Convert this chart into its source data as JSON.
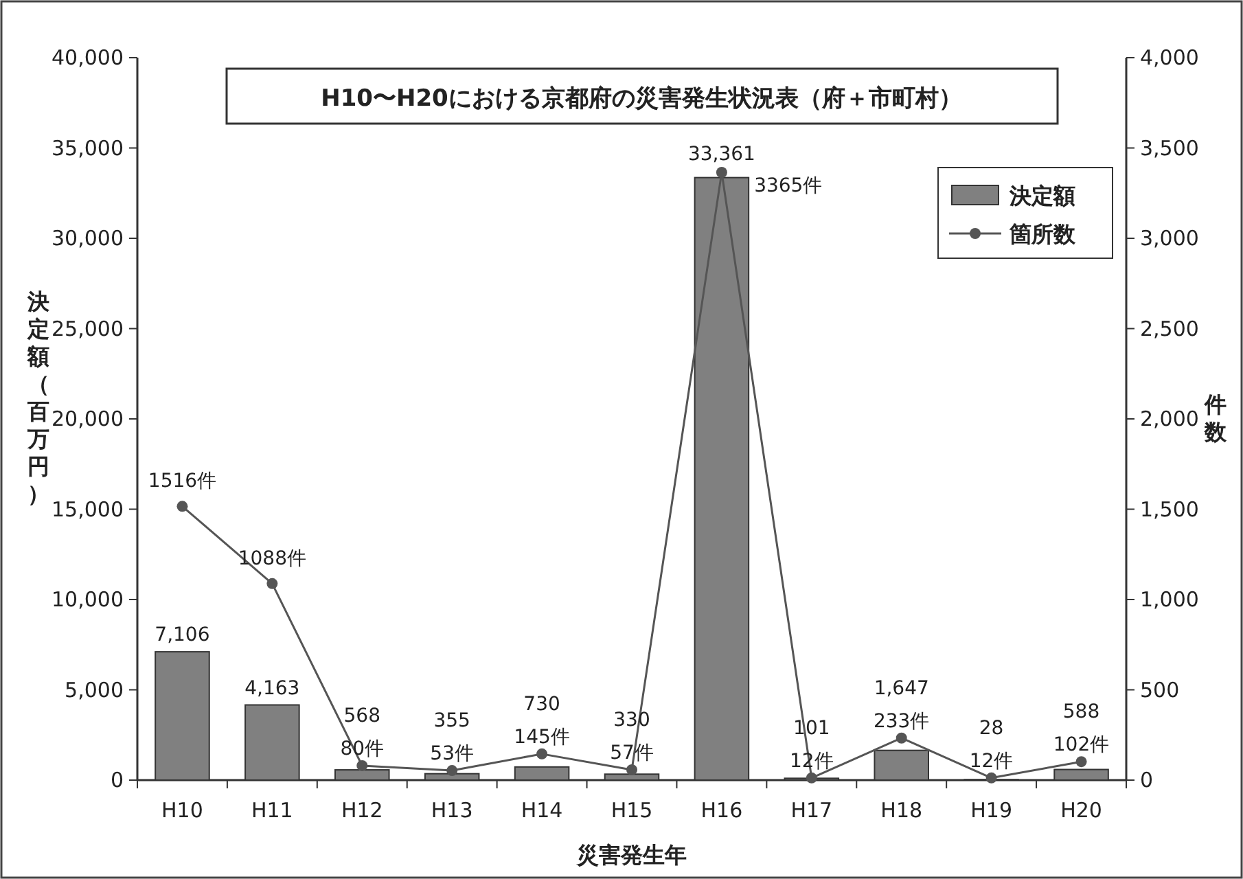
{
  "chart_data": {
    "type": "bar",
    "title": "H10〜H20における京都府の災害発生状況表（府＋市町村）",
    "xlabel": "災害発生年",
    "ylabel": "決定額（百万円）",
    "y2label": "件数",
    "categories": [
      "H10",
      "H11",
      "H12",
      "H13",
      "H14",
      "H15",
      "H16",
      "H17",
      "H18",
      "H19",
      "H20"
    ],
    "series": [
      {
        "name": "決定額",
        "color": "#808080",
        "values": [
          7106,
          4163,
          568,
          355,
          730,
          330,
          33361,
          101,
          1647,
          28,
          588
        ],
        "value_labels": [
          "7,106",
          "4,163",
          "568",
          "355",
          "730",
          "330",
          "33,361",
          "101",
          "1,647",
          "28",
          "588"
        ]
      },
      {
        "name": "箇所数",
        "type": "line",
        "axis": "y2",
        "color": "#555555",
        "marker": "circle",
        "values": [
          1516,
          1088,
          80,
          53,
          145,
          57,
          3365,
          12,
          233,
          12,
          102
        ],
        "value_labels": [
          "1516件",
          "1088件",
          "80件",
          "53件",
          "145件",
          "57件",
          "3365件",
          "12件",
          "233件",
          "12件",
          "102件"
        ]
      }
    ],
    "ylim": [
      0,
      40000
    ],
    "yticks": [
      {
        "value": 0,
        "label": "0"
      },
      {
        "value": 5000,
        "label": "5,000"
      },
      {
        "value": 10000,
        "label": "10,000"
      },
      {
        "value": 15000,
        "label": "15,000"
      },
      {
        "value": 20000,
        "label": "20,000"
      },
      {
        "value": 25000,
        "label": "25,000"
      },
      {
        "value": 30000,
        "label": "30,000"
      },
      {
        "value": 35000,
        "label": "35,000"
      },
      {
        "value": 40000,
        "label": "40,000"
      }
    ],
    "y2lim": [
      0,
      4000
    ],
    "y2ticks": [
      {
        "value": 0,
        "label": "0"
      },
      500,
      {
        "value": 1000,
        "label": "1,000"
      },
      {
        "value": 1500,
        "label": "1,500"
      },
      {
        "value": 2000,
        "label": "2,000"
      },
      {
        "value": 2500,
        "label": "2,500"
      },
      {
        "value": 3000,
        "label": "3,000"
      },
      {
        "value": 3500,
        "label": "3,500"
      },
      {
        "value": 4000,
        "label": "4,000"
      }
    ],
    "legend": "top right",
    "grid": false
  }
}
